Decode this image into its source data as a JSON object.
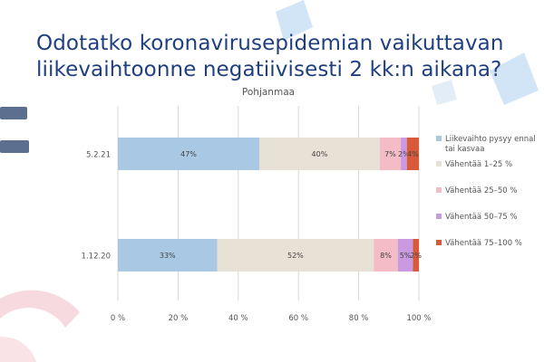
{
  "slide": {
    "title_lines": [
      "Odotatko koronavirusepidemian vaikuttavan",
      "liikevaihtoonne negatiivisesti 2 kk:n aikana?"
    ]
  },
  "chart_data": {
    "type": "bar",
    "orientation": "horizontal",
    "stacked": "percent",
    "title": "Pohjanmaa",
    "categories": [
      "5.2.21",
      "1.12.20"
    ],
    "series": [
      {
        "name": "Liikevaihto pysyy ennallaan tai kasvaa",
        "legend_lines": [
          "Liikevaihto pysyy ennal",
          "tai kasvaa"
        ],
        "color": "#a9c8e4",
        "values": [
          47,
          33
        ],
        "labels": [
          "47%",
          "33%"
        ]
      },
      {
        "name": "Vähentää 1–25 %",
        "legend_lines": [
          "Vähentää 1–25 %"
        ],
        "color": "#e8e1d5",
        "values": [
          40,
          52
        ],
        "labels": [
          "40%",
          "52%"
        ]
      },
      {
        "name": "Vähentää 25–50 %",
        "legend_lines": [
          "Vähentää 25–50 %"
        ],
        "color": "#f4bcc4",
        "values": [
          7,
          8
        ],
        "labels": [
          "7%",
          "8%"
        ]
      },
      {
        "name": "Vähentää 50–75 %",
        "legend_lines": [
          "Vähentää 50–75 %"
        ],
        "color": "#c99ae0",
        "values": [
          2,
          5
        ],
        "labels": [
          "2%",
          "5%"
        ]
      },
      {
        "name": "Vähentää 75–100 %",
        "legend_lines": [
          "Vähentää 75–100 %"
        ],
        "color": "#d95a3a",
        "values": [
          4,
          2
        ],
        "labels": [
          "4%",
          "2%"
        ]
      }
    ],
    "xlim": [
      0,
      100
    ],
    "xticks": [
      "0 %",
      "20 %",
      "40 %",
      "60 %",
      "80 %",
      "100 %"
    ],
    "legend_position": "right"
  }
}
